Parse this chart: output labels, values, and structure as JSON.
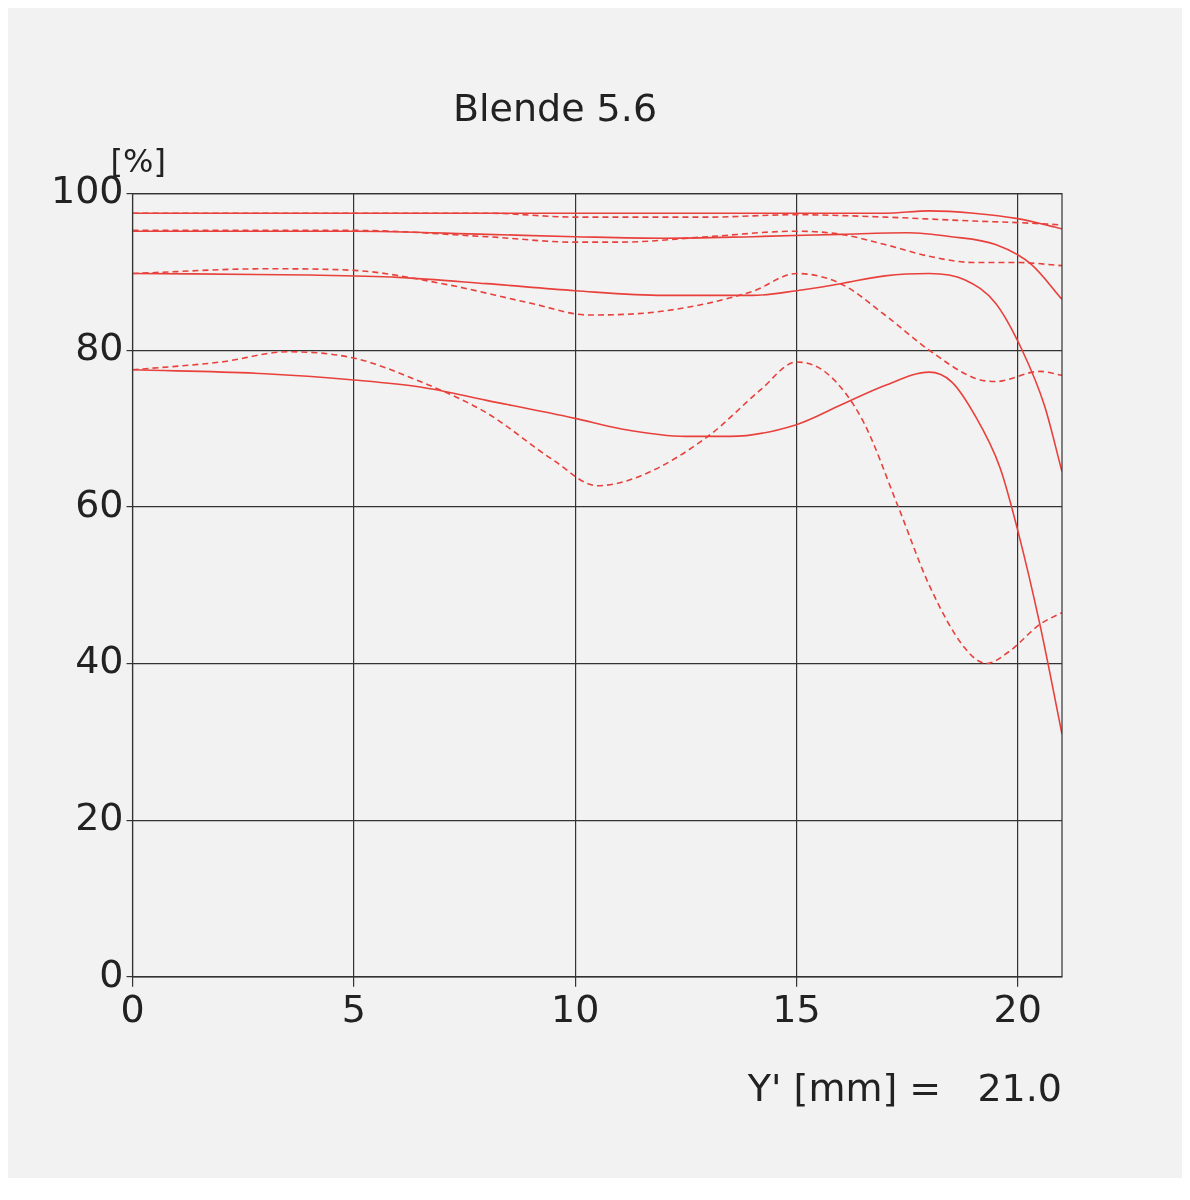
{
  "chart_data": {
    "type": "line",
    "title": "Blende 5.6",
    "xlabel": "Y' [mm] =   21.0",
    "ylabel": "[%]",
    "xlim": [
      0,
      21
    ],
    "ylim": [
      0,
      100
    ],
    "xticks": [
      0,
      5,
      10,
      15,
      20
    ],
    "yticks": [
      0,
      20,
      40,
      60,
      80,
      100
    ],
    "grid": true,
    "marker": "none",
    "series": [
      {
        "color": "#e8413c",
        "line_style": "solid",
        "x": [
          0,
          5,
          10,
          15,
          17,
          18,
          19,
          20,
          21
        ],
        "values": [
          97.5,
          97.5,
          97.5,
          97.5,
          97.5,
          97.8,
          97.5,
          96.8,
          95.5
        ]
      },
      {
        "color": "#e8413c",
        "line_style": "dashed",
        "x": [
          0,
          5,
          8,
          10,
          13,
          15,
          17,
          19,
          20,
          21
        ],
        "values": [
          97.5,
          97.5,
          97.5,
          97,
          97,
          97.3,
          97,
          96.5,
          96.3,
          96
        ]
      },
      {
        "color": "#e8413c",
        "line_style": "solid",
        "x": [
          0,
          5,
          8,
          10,
          12,
          14,
          16,
          17.5,
          18.5,
          19.5,
          20.3,
          21
        ],
        "values": [
          95.2,
          95.2,
          94.8,
          94.5,
          94.3,
          94.5,
          94.8,
          95,
          94.5,
          93.5,
          91,
          86.5
        ]
      },
      {
        "color": "#e8413c",
        "line_style": "dashed",
        "x": [
          0,
          5,
          8,
          10,
          11,
          13,
          15,
          16,
          17,
          18,
          19,
          20,
          21
        ],
        "values": [
          95.3,
          95.3,
          94.5,
          93.8,
          93.8,
          94.5,
          95.2,
          94.8,
          93.5,
          92,
          91.2,
          91.2,
          90.8
        ]
      },
      {
        "color": "#e8413c",
        "line_style": "solid",
        "x": [
          0,
          4,
          6,
          8,
          10,
          12,
          14,
          15,
          16,
          17,
          18,
          18.8,
          19.5,
          20.1,
          20.6,
          21
        ],
        "values": [
          89.8,
          89.6,
          89.3,
          88.5,
          87.6,
          87,
          87,
          87.6,
          88.5,
          89.5,
          89.8,
          89,
          86,
          80,
          73,
          64.5
        ]
      },
      {
        "color": "#e8413c",
        "line_style": "dashed",
        "x": [
          0,
          3,
          5,
          7,
          9,
          10.3,
          12,
          14,
          15,
          16,
          17,
          18,
          19,
          19.5,
          20.5,
          21
        ],
        "values": [
          89.8,
          90.4,
          90.2,
          88.5,
          86,
          84.5,
          85,
          87.5,
          89.8,
          88.5,
          84.5,
          80,
          76.5,
          76,
          77.3,
          76.8
        ]
      },
      {
        "color": "#e8413c",
        "line_style": "solid",
        "x": [
          0,
          3,
          5,
          6.5,
          8,
          10,
          11,
          12.5,
          13.5,
          15,
          16,
          17,
          18,
          18.5,
          19,
          19.6,
          20,
          20.5,
          21
        ],
        "values": [
          77.5,
          77,
          76.2,
          75.3,
          73.6,
          71.3,
          70,
          69,
          69,
          70.5,
          73,
          75.5,
          77.2,
          76,
          72,
          65,
          57,
          45,
          31
        ]
      },
      {
        "color": "#e8413c",
        "line_style": "dashed",
        "x": [
          0,
          2,
          3.5,
          5,
          6.5,
          8,
          9.5,
          10.5,
          11.5,
          13,
          14.2,
          15,
          15.7,
          16.5,
          17.3,
          18,
          18.8,
          19.3,
          19.8,
          20.5,
          21
        ],
        "values": [
          77.5,
          78.5,
          79.8,
          79,
          76,
          72,
          66,
          62.7,
          64,
          69,
          75,
          78.5,
          77,
          71,
          60,
          50,
          42,
          40,
          41.5,
          45,
          46.5
        ]
      }
    ]
  }
}
